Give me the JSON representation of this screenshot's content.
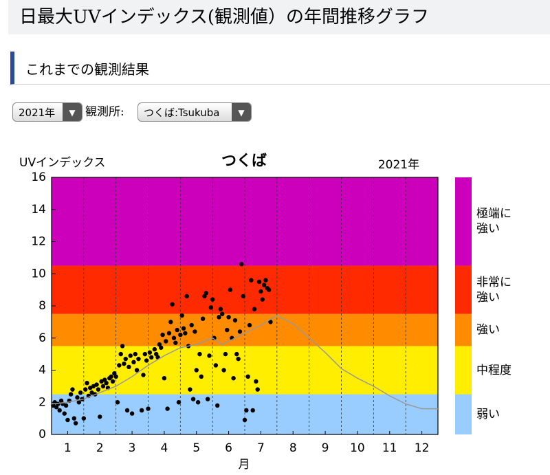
{
  "page_title": "日最大UVインデックス(観測値）の年間推移グラフ",
  "section_title": "これまでの観測結果",
  "controls": {
    "year_select": "2021年",
    "station_label": "観測所:",
    "station_select": "つくば:Tsukuba"
  },
  "chart_data": {
    "type": "scatter",
    "title": "つくば",
    "subtitle": "2021年",
    "y_label": "UVインデックス",
    "x_label": "月",
    "xlim": [
      0.5,
      12.5
    ],
    "xticks": [
      1,
      2,
      3,
      4,
      5,
      6,
      7,
      8,
      9,
      10,
      11,
      12
    ],
    "ylim": [
      0,
      16
    ],
    "yticks": [
      0,
      2,
      4,
      6,
      8,
      10,
      12,
      14,
      16
    ],
    "bands": [
      {
        "name": "弱い",
        "from": 0,
        "to": 2.5,
        "color": "#99ccff"
      },
      {
        "name": "中程度",
        "from": 2.5,
        "to": 5.5,
        "color": "#ffee00"
      },
      {
        "name": "強い",
        "from": 5.5,
        "to": 7.5,
        "color": "#ff8c00"
      },
      {
        "name": "非常に強い",
        "from": 7.5,
        "to": 10.5,
        "color": "#ff2a00"
      },
      {
        "name": "極端に強い",
        "from": 10.5,
        "to": 16,
        "color": "#cc00bb"
      }
    ],
    "series": [
      {
        "type": "scatter",
        "color": "#000000",
        "x": [
          0.55,
          0.6,
          0.65,
          0.7,
          0.75,
          0.8,
          0.85,
          0.9,
          0.95,
          1.0,
          1.05,
          1.1,
          1.15,
          1.2,
          1.25,
          1.3,
          1.35,
          1.4,
          1.45,
          1.5,
          1.55,
          1.6,
          1.65,
          1.7,
          1.75,
          1.8,
          1.85,
          1.9,
          1.95,
          2.0,
          2.05,
          2.1,
          2.15,
          2.2,
          2.25,
          2.3,
          2.35,
          2.4,
          2.45,
          2.5,
          2.55,
          2.6,
          2.65,
          2.7,
          2.75,
          2.8,
          2.85,
          2.9,
          2.95,
          3.0,
          3.05,
          3.1,
          3.15,
          3.2,
          3.3,
          3.35,
          3.4,
          3.45,
          3.5,
          3.55,
          3.6,
          3.7,
          3.75,
          3.8,
          3.85,
          3.9,
          3.95,
          4.0,
          4.05,
          4.1,
          4.15,
          4.2,
          4.25,
          4.3,
          4.35,
          4.4,
          4.45,
          4.5,
          4.55,
          4.6,
          4.65,
          4.7,
          4.75,
          4.8,
          4.85,
          4.9,
          4.95,
          5.0,
          5.05,
          5.1,
          5.15,
          5.2,
          5.25,
          5.3,
          5.35,
          5.4,
          5.45,
          5.5,
          5.55,
          5.6,
          5.65,
          5.7,
          5.75,
          5.8,
          5.85,
          5.9,
          5.95,
          6.0,
          6.05,
          6.1,
          6.15,
          6.2,
          6.25,
          6.3,
          6.35,
          6.4,
          6.45,
          6.5,
          6.55,
          6.6,
          6.65,
          6.7,
          6.75,
          6.8,
          6.85,
          6.9,
          6.95,
          7.0,
          7.05,
          7.1,
          7.15,
          7.2,
          7.25,
          7.3
        ],
        "values": [
          1.8,
          2.0,
          1.7,
          1.9,
          1.5,
          2.1,
          1.9,
          1.3,
          1.8,
          0.9,
          2.1,
          2.5,
          2.8,
          1.0,
          0.7,
          2.3,
          2.0,
          2.6,
          2.2,
          1.0,
          2.8,
          3.2,
          2.4,
          2.9,
          2.6,
          3.0,
          2.5,
          3.1,
          2.8,
          1.1,
          3.3,
          3.0,
          3.4,
          3.2,
          2.9,
          3.5,
          3.6,
          3.3,
          3.8,
          3.6,
          2.0,
          4.3,
          5.0,
          5.5,
          4.4,
          4.7,
          1.5,
          4.2,
          4.9,
          1.3,
          4.5,
          5.0,
          4.0,
          4.7,
          1.5,
          3.7,
          5.0,
          4.6,
          1.6,
          5.1,
          4.8,
          5.3,
          5.0,
          4.8,
          5.6,
          5.4,
          6.2,
          3.5,
          5.8,
          1.6,
          6.3,
          7.0,
          8.1,
          6.0,
          5.7,
          6.5,
          2.0,
          6.2,
          7.4,
          6.6,
          6.3,
          8.6,
          5.5,
          2.8,
          6.8,
          2.2,
          6.4,
          4.0,
          2.0,
          5.0,
          3.6,
          7.2,
          8.6,
          8.8,
          2.2,
          4.9,
          7.9,
          8.4,
          6.0,
          4.3,
          1.8,
          7.3,
          7.8,
          7.5,
          4.0,
          5.0,
          6.5,
          7.3,
          9.0,
          6.0,
          3.5,
          7.1,
          5.0,
          4.7,
          6.4,
          10.6,
          8.6,
          0.9,
          1.5,
          3.6,
          6.8,
          9.6,
          1.5,
          7.8,
          3.3,
          2.8,
          9.5,
          8.9,
          8.4,
          9.3,
          9.6,
          9.1,
          9.0,
          7.0
        ]
      },
      {
        "type": "line",
        "color": "#999999",
        "x": [
          0.5,
          1,
          1.5,
          2,
          2.5,
          3,
          3.5,
          4,
          4.5,
          5,
          5.5,
          5.8,
          6,
          6.5,
          7,
          7.5,
          8,
          8.5,
          9,
          9.5,
          10,
          10.5,
          11,
          11.5,
          12,
          12.5
        ],
        "values": [
          1.9,
          2.0,
          2.2,
          2.6,
          3.0,
          3.6,
          4.3,
          4.9,
          5.4,
          5.6,
          6.0,
          5.6,
          5.8,
          6.3,
          6.8,
          7.4,
          6.9,
          6.0,
          5.1,
          4.1,
          3.5,
          3.0,
          2.4,
          1.9,
          1.6,
          1.6
        ]
      }
    ]
  }
}
